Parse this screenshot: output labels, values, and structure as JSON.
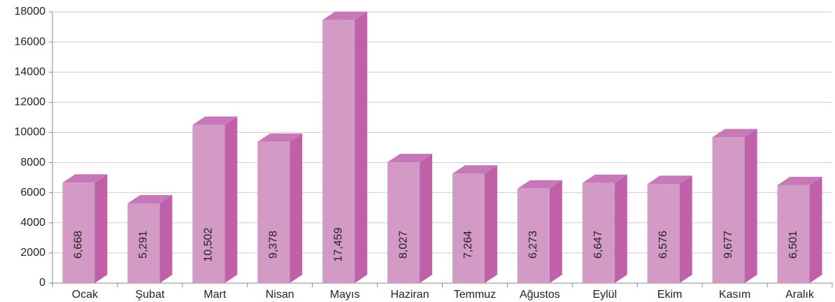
{
  "chart_data": {
    "type": "bar3d",
    "categories": [
      "Ocak",
      "Şubat",
      "Mart",
      "Nisan",
      "Mayıs",
      "Haziran",
      "Temmuz",
      "Ağustos",
      "Eylül",
      "Ekim",
      "Kasım",
      "Aralık"
    ],
    "values": [
      6668,
      5291,
      10502,
      9378,
      17459,
      8027,
      7264,
      6273,
      6647,
      6576,
      9677,
      6501
    ],
    "value_labels": [
      "6,668",
      "5,291",
      "10,502",
      "9,378",
      "17,459",
      "8,027",
      "7,264",
      "6,273",
      "6,647",
      "6,576",
      "9,677",
      "6,501"
    ],
    "color": "#d49ac6",
    "ylim": [
      0,
      18000
    ],
    "yticks": [
      0,
      2000,
      4000,
      6000,
      8000,
      10000,
      12000,
      14000,
      16000,
      18000
    ],
    "grid": true
  }
}
